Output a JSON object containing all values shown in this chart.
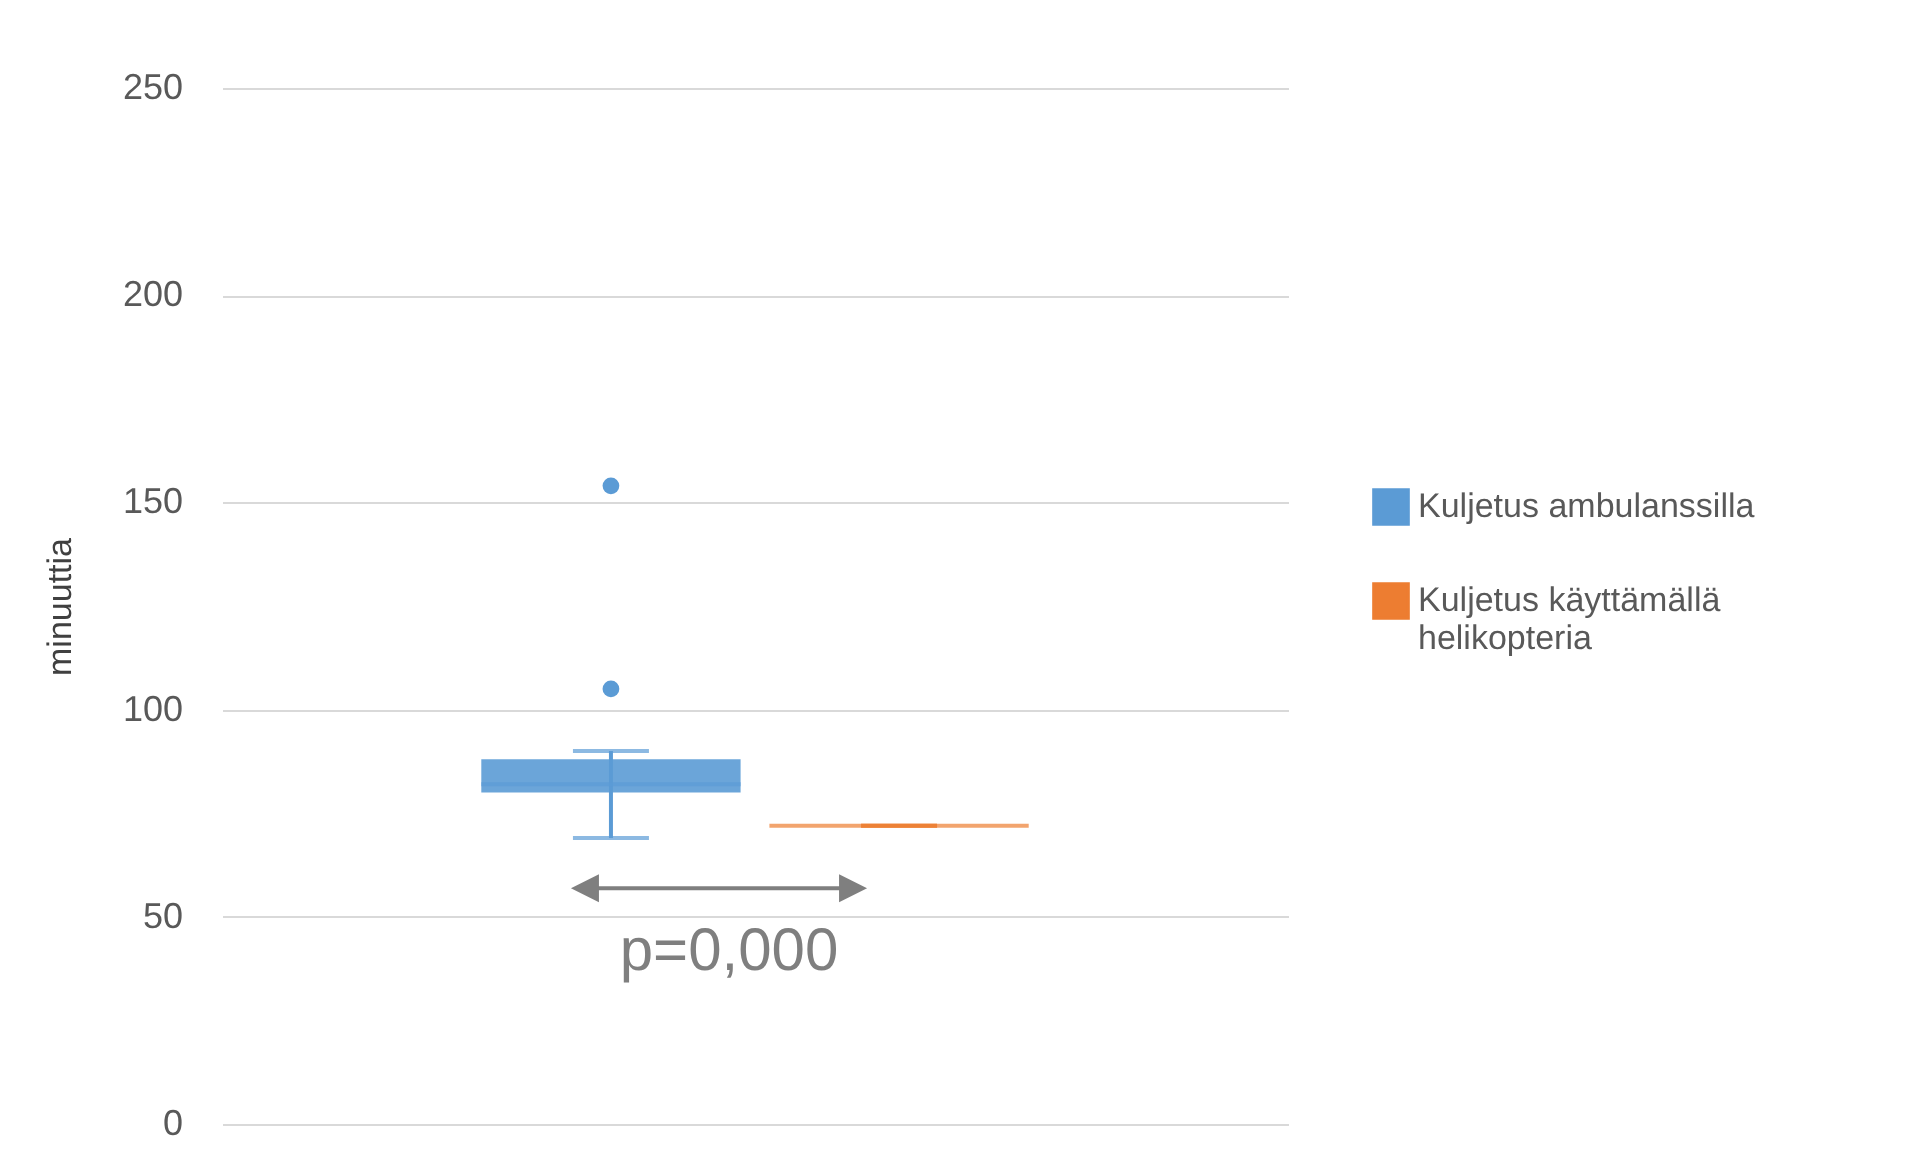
{
  "chart_data": {
    "type": "box",
    "ylabel": "minuuttia",
    "categories": [
      null
    ],
    "series": [
      {
        "name": "Kuljetus ambulanssilla",
        "color": "#5b9bd5",
        "boxes": [
          {
            "low": 69,
            "q1": 80,
            "median": 82,
            "q3": 88,
            "high": 90,
            "outliers": [
              105,
              154
            ]
          }
        ]
      },
      {
        "name": "Kuljetus käyttämällä helikopteria",
        "color": "#ed7d31",
        "boxes": [
          {
            "low": 72,
            "q1": 72,
            "median": 72,
            "q3": 72,
            "high": 72
          }
        ]
      }
    ],
    "ylim": [
      0,
      250
    ],
    "yticks": [
      0,
      50,
      100,
      150,
      200,
      250
    ],
    "grid": "y",
    "legend": "right",
    "tick_labels": "y",
    "annotations": [
      "p=0,000"
    ]
  }
}
